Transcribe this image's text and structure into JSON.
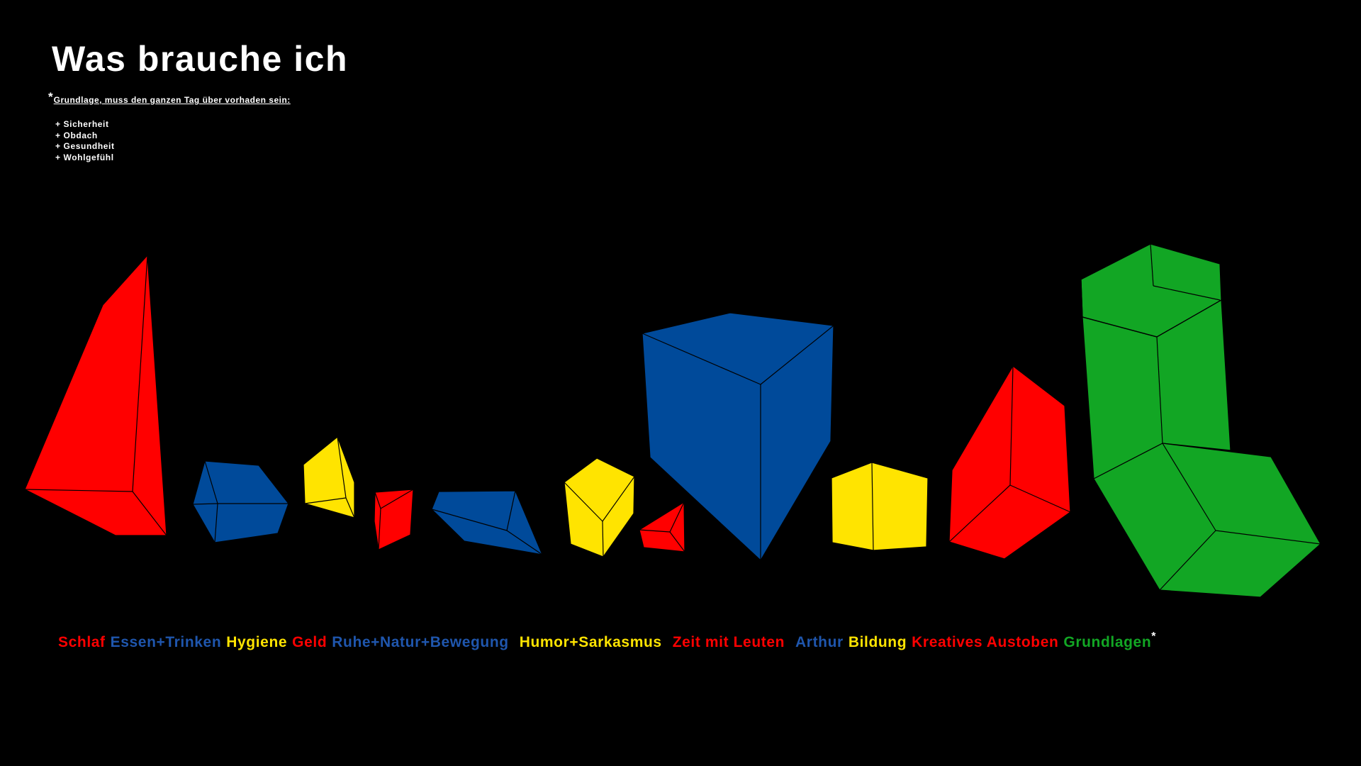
{
  "title": "Was brauche ich",
  "note": {
    "star": "*",
    "heading": "Grundlage, muss den ganzen Tag über vorhaden sein:",
    "items": [
      "+ Sicherheit",
      "+ Obdach",
      "+ Gesundheit",
      "+ Wohlgefühl"
    ]
  },
  "colors": {
    "background": "#000000",
    "red": "#ff0000",
    "blue": "#004a9a",
    "yellow": "#ffe400",
    "green": "#12a624"
  },
  "legend": {
    "items": [
      {
        "label": "Schlaf",
        "color": "#ff0000"
      },
      {
        "label": "Essen+Trinken",
        "color": "#1f56ad"
      },
      {
        "label": "Hygiene",
        "color": "#ffe400"
      },
      {
        "label": "Geld",
        "color": "#ff0000"
      },
      {
        "label": "Ruhe+Natur+Bewegung",
        "color": "#1f56ad"
      },
      {
        "label": "Humor+Sarkasmus",
        "color": "#ffe400"
      },
      {
        "label": "Zeit mit Leuten",
        "color": "#ff0000"
      },
      {
        "label": "Arthur",
        "color": "#1f56ad"
      },
      {
        "label": "Bildung",
        "color": "#ffe400"
      },
      {
        "label": "Kreatives Austoben",
        "color": "#ff0000"
      },
      {
        "label": "Grundlagen",
        "color": "#12a624"
      }
    ],
    "star": "*"
  }
}
